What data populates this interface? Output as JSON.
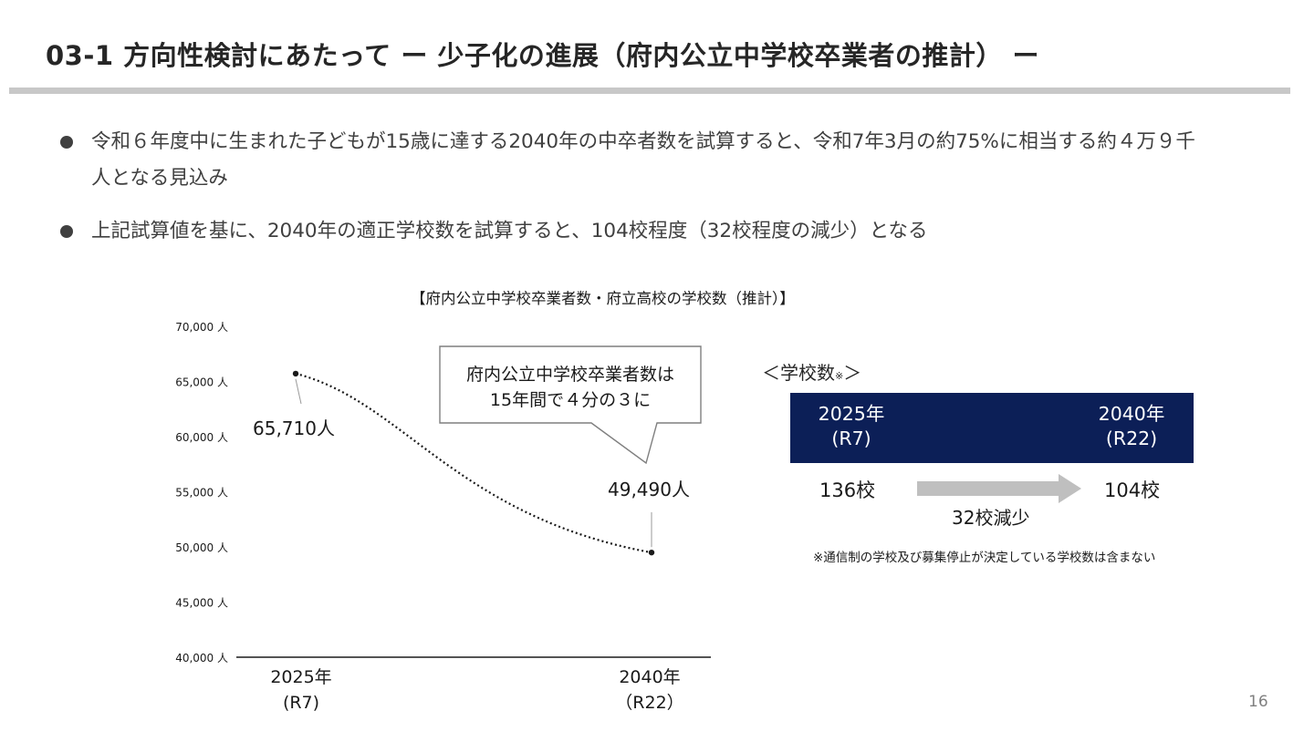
{
  "slide": {
    "title": "03-1  方向性検討にあたって  ー 少子化の進展（府内公立中学校卒業者の推計） ー",
    "bullets": [
      "令和６年度中に生まれた子どもが15歳に達する2040年の中卒者数を試算すると、令和7年3月の約75%に相当する約４万９千人となる見込み",
      "上記試算値を基に、2040年の適正学校数を試算すると、104校程度（32校程度の減少）となる"
    ],
    "page_number": "16"
  },
  "chart_title": "【府内公立中学校卒業者数・府立高校の学校数（推計）】",
  "chart_data": {
    "type": "line",
    "x_categories": [
      [
        "2025年",
        "(R7)"
      ],
      [
        "2040年",
        "（R22）"
      ]
    ],
    "series": [
      {
        "points": [
          {
            "x": "2025年",
            "y": 65710,
            "label": "65,710人"
          },
          {
            "x": "2040年",
            "y": 49490,
            "label": "49,490人"
          }
        ],
        "line_style": "dotted",
        "color": "#1a1a1a"
      }
    ],
    "ylim": [
      40000,
      70000
    ],
    "y_ticks": [
      "40,000 人",
      "45,000 人",
      "50,000 人",
      "55,000 人",
      "60,000 人",
      "65,000 人",
      "70,000 人"
    ],
    "y_tick_values": [
      40000,
      45000,
      50000,
      55000,
      60000,
      65000,
      70000
    ],
    "grid": false,
    "callout": [
      "府内公立中学校卒業者数は",
      "15年間で４分の３に"
    ]
  },
  "school_panel": {
    "heading": "＜学校数",
    "heading_mark": "※",
    "heading_close": "＞",
    "header_left": [
      "2025年",
      "(R7)"
    ],
    "header_right": [
      "2040年",
      "(R22)"
    ],
    "count_left": "136校",
    "count_right": "104校",
    "reduction": "32校減少",
    "note": "※通信制の学校及び募集停止が決定している学校数は含まない",
    "header_color": "#0c1f57",
    "arrow_color": "#bfbfbf"
  }
}
